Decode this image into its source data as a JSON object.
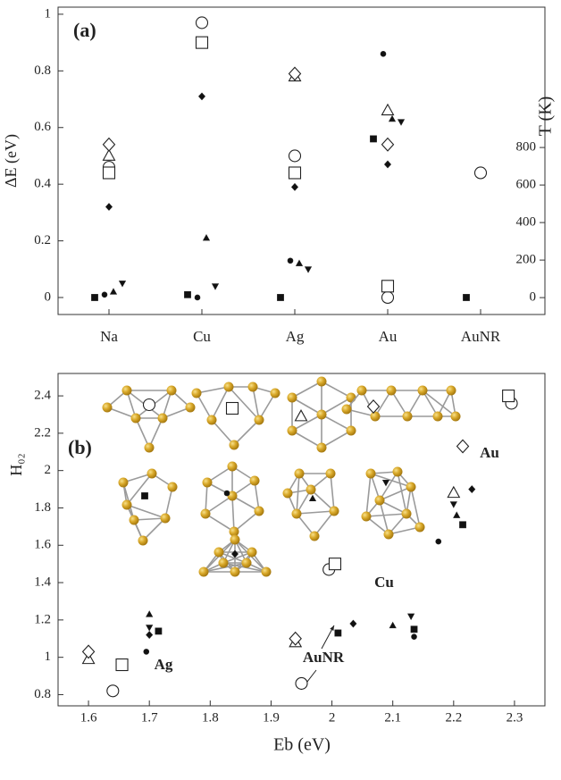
{
  "chart_data": [
    {
      "type": "scatter",
      "label": "(a)",
      "categories": [
        "Na",
        "Cu",
        "Ag",
        "Au",
        "AuNR"
      ],
      "ylabel": "ΔE (eV)",
      "y2label": "T (K)",
      "ylim": [
        -0.06,
        1.025
      ],
      "yticks": [
        0,
        0.2,
        0.4,
        0.6,
        0.8,
        1
      ],
      "y2lim": [
        -90,
        1548
      ],
      "y2ticks": [
        0,
        200,
        400,
        600,
        800
      ],
      "series": [
        {
          "marker": "circle",
          "filled": false,
          "values": [
            0.46,
            0.97,
            0.5,
            0.0,
            0.44
          ]
        },
        {
          "marker": "square",
          "filled": false,
          "values": [
            0.44,
            0.9,
            0.44,
            0.04,
            null
          ]
        },
        {
          "marker": "triangle-up",
          "filled": false,
          "values": [
            0.5,
            null,
            0.78,
            0.66,
            null
          ]
        },
        {
          "marker": "diamond",
          "filled": false,
          "values": [
            0.54,
            null,
            0.79,
            0.54,
            null
          ]
        },
        {
          "marker": "diamond",
          "filled": true,
          "values": [
            0.32,
            0.71,
            0.39,
            0.47,
            null
          ]
        },
        {
          "marker": "square",
          "filled": true,
          "values": [
            0.0,
            0.01,
            0.0,
            0.56,
            0.0
          ]
        },
        {
          "marker": "circle",
          "filled": true,
          "values": [
            0.01,
            0.0,
            0.13,
            0.86,
            null
          ]
        },
        {
          "marker": "triangle-up",
          "filled": true,
          "values": [
            0.02,
            0.21,
            0.12,
            0.63,
            null
          ]
        },
        {
          "marker": "triangle-down",
          "filled": true,
          "values": [
            0.05,
            0.04,
            0.1,
            0.62,
            null
          ]
        }
      ]
    },
    {
      "type": "scatter",
      "label": "(b)",
      "xlabel": "Eb (eV)",
      "ylabel": "H₀₂",
      "xlim": [
        1.55,
        2.35
      ],
      "xticks": [
        1.6,
        1.7,
        1.8,
        1.9,
        2,
        2.1,
        2.2,
        2.3
      ],
      "ylim": [
        0.74,
        2.52
      ],
      "yticks": [
        0.8,
        1,
        1.2,
        1.4,
        1.6,
        1.8,
        2,
        2.2,
        2.4
      ],
      "annotations": [
        "Au",
        "Cu",
        "Ag",
        "AuNR"
      ],
      "series": [
        {
          "marker": "circle",
          "filled": false,
          "x": [
            1.64,
            1.995,
            1.95,
            2.295
          ],
          "values": [
            0.82,
            1.47,
            0.86,
            2.36
          ]
        },
        {
          "marker": "square",
          "filled": false,
          "x": [
            1.655,
            2.005,
            2.29
          ],
          "values": [
            0.96,
            1.5,
            2.4
          ]
        },
        {
          "marker": "triangle-up",
          "filled": false,
          "x": [
            1.6,
            1.94,
            2.2
          ],
          "values": [
            0.99,
            1.08,
            1.88
          ]
        },
        {
          "marker": "diamond",
          "filled": false,
          "x": [
            1.6,
            1.94,
            2.215
          ],
          "values": [
            1.03,
            1.1,
            2.13
          ]
        },
        {
          "marker": "diamond",
          "filled": true,
          "x": [
            1.7,
            2.035,
            2.23
          ],
          "values": [
            1.12,
            1.18,
            1.9
          ]
        },
        {
          "marker": "square",
          "filled": true,
          "x": [
            1.715,
            2.01,
            2.135,
            2.215
          ],
          "values": [
            1.14,
            1.13,
            1.15,
            1.71
          ]
        },
        {
          "marker": "circle",
          "filled": true,
          "x": [
            1.695,
            2.135,
            2.175
          ],
          "values": [
            1.03,
            1.11,
            1.62
          ]
        },
        {
          "marker": "triangle-up",
          "filled": true,
          "x": [
            1.7,
            2.1,
            2.205
          ],
          "values": [
            1.23,
            1.17,
            1.76
          ]
        },
        {
          "marker": "triangle-down",
          "filled": true,
          "x": [
            1.7,
            2.13,
            2.2
          ],
          "values": [
            1.16,
            1.22,
            1.82
          ]
        }
      ]
    }
  ]
}
